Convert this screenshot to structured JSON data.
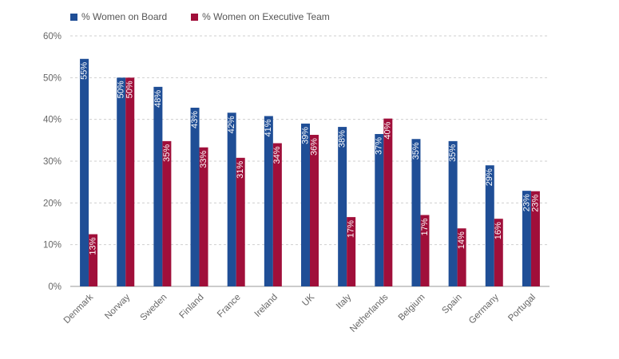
{
  "chart_data": {
    "type": "bar",
    "categories": [
      "Denmark",
      "Norway",
      "Sweden",
      "Finland",
      "France",
      "Ireland",
      "UK",
      "Italy",
      "Netherlands",
      "Belgium",
      "Spain",
      "Germany",
      "Portugal"
    ],
    "series": [
      {
        "name": "% Women on Board",
        "color": "#1f4e96",
        "values": [
          54.5,
          50,
          47.8,
          42.8,
          41.6,
          40.8,
          39,
          38.2,
          36.5,
          35.3,
          34.8,
          29,
          22.9
        ],
        "labels": [
          "55%",
          "50%",
          "48%",
          "43%",
          "42%",
          "41%",
          "39%",
          "38%",
          "37%",
          "35%",
          "35%",
          "29%",
          "23%"
        ]
      },
      {
        "name": "% Women on Executive Team",
        "color": "#a00f3a",
        "values": [
          12.5,
          50,
          34.8,
          33.3,
          30.8,
          34.3,
          36.3,
          16.6,
          40.2,
          17.1,
          13.9,
          16.2,
          22.8
        ],
        "labels": [
          "13%",
          "50%",
          "35%",
          "33%",
          "31%",
          "34%",
          "36%",
          "17%",
          "40%",
          "17%",
          "14%",
          "16%",
          "23%"
        ]
      }
    ],
    "yticks": [
      "0%",
      "10%",
      "20%",
      "30%",
      "40%",
      "50%",
      "60%"
    ],
    "ylim": [
      0,
      60
    ],
    "grid": true,
    "legend": "top-left",
    "title": "",
    "xlabel": "",
    "ylabel": ""
  }
}
